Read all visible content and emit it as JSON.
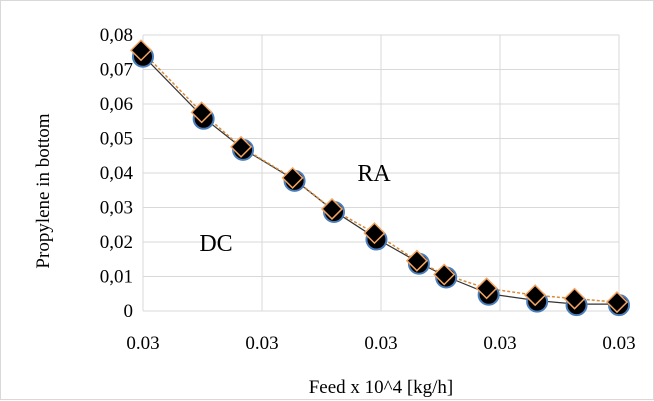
{
  "chart_data": {
    "type": "scatter",
    "title": "",
    "xlabel": "Feed x 10^4 [kg/h]",
    "ylabel": "Propylene in bottom",
    "x_tick_labels": [
      "0.03",
      "0.03",
      "0.03",
      "0.03",
      "0.03"
    ],
    "y_tick_labels": [
      "0",
      "0,01",
      "0,02",
      "0,03",
      "0,04",
      "0,05",
      "0,06",
      "0,07",
      "0,08"
    ],
    "ylim": [
      0,
      0.08
    ],
    "grid": true,
    "annotations": [
      {
        "text": "RA"
      },
      {
        "text": "DC"
      }
    ],
    "series": [
      {
        "values": [
          0.074,
          0.056,
          0.047,
          0.038,
          0.029,
          0.021,
          0.014,
          0.01,
          0.005,
          0.003,
          0.002,
          0.002
        ],
        "marker": "circle",
        "color": "#000000"
      },
      {
        "values": [
          0.075,
          0.057,
          0.047,
          0.038,
          0.029,
          0.022,
          0.014,
          0.01,
          0.006,
          0.004,
          0.003,
          0.002
        ],
        "marker": "diamond",
        "color": "#000000",
        "edge_color": "#f4a460",
        "line_color": "#d98c3a"
      }
    ],
    "x_positions_fraction": [
      0.0,
      0.2,
      0.33,
      0.5,
      0.63,
      0.77,
      0.91,
      1.0,
      1.14,
      1.3,
      1.43,
      1.57
    ]
  }
}
